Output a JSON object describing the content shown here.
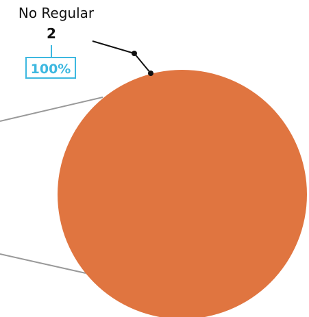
{
  "chart_data": {
    "type": "pie",
    "slices": [
      {
        "label": "No Regular",
        "count": "2",
        "percent": "100%",
        "value": 2
      }
    ],
    "colors": {
      "slice": "#E07540",
      "percent_box": "#3DB8E0",
      "leader_line": "#111111",
      "connector_line": "#999999"
    }
  }
}
